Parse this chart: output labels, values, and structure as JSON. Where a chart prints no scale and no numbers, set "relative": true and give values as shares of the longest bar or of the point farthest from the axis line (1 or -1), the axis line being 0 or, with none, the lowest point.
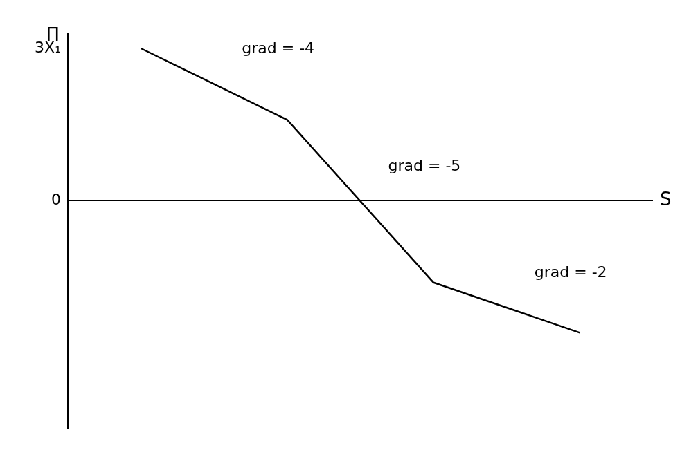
{
  "chart_data": {
    "type": "line",
    "relative": true,
    "xlabel": "S",
    "ylabel": "Π",
    "categories": [
      null,
      null,
      null,
      null
    ],
    "series": [
      {
        "color": "#000000",
        "values": [
          1,
          0.53,
          -0.54,
          -0.87
        ]
      }
    ],
    "annotations": [
      "3X₁",
      "0",
      "grad = -4",
      "grad = -5",
      "grad = -2"
    ],
    "grid": false,
    "legend": false,
    "marker": "none",
    "line_style": "solid"
  }
}
